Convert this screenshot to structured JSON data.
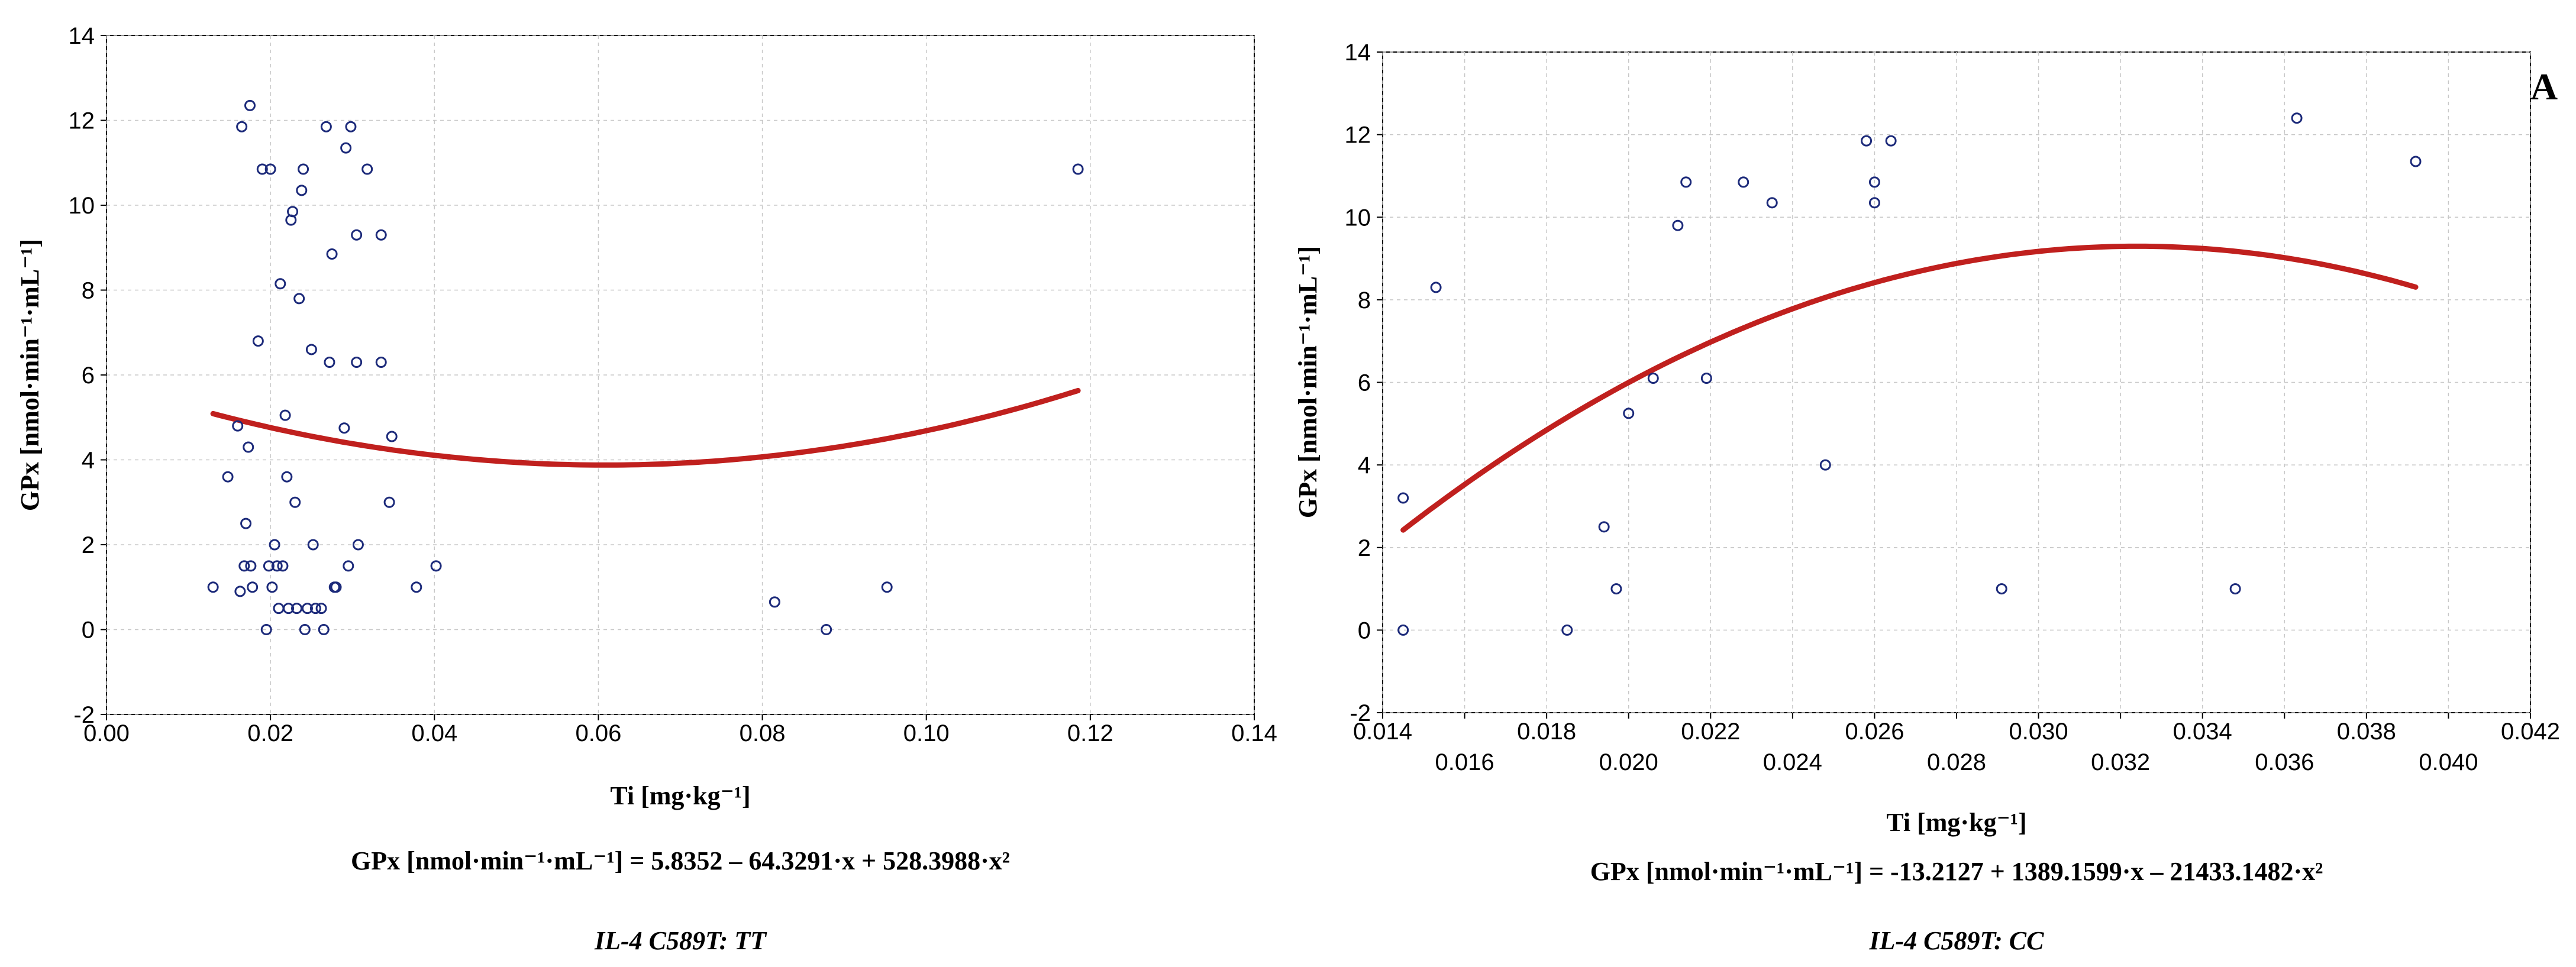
{
  "panel_letter": "A",
  "chart_data": [
    {
      "type": "scatter",
      "title": "",
      "xlabel": "Ti [mg·kg⁻¹]",
      "ylabel": "GPx [nmol·min⁻¹·mL⁻¹]",
      "xlim": [
        0.0,
        0.14
      ],
      "ylim": [
        -2,
        14
      ],
      "x_ticks": [
        0.0,
        0.02,
        0.04,
        0.06,
        0.08,
        0.1,
        0.12,
        0.14
      ],
      "x_tick_labels": [
        "0.00",
        "0.02",
        "0.04",
        "0.06",
        "0.08",
        "0.10",
        "0.12",
        "0.14"
      ],
      "y_ticks": [
        -2,
        0,
        2,
        4,
        6,
        8,
        10,
        12,
        14
      ],
      "y_tick_labels": [
        "-2",
        "0",
        "2",
        "4",
        "6",
        "8",
        "10",
        "12",
        "14"
      ],
      "grid": true,
      "equation": "GPx [nmol·min⁻¹·mL⁻¹] = 5.8352 – 64.3291·x + 528.3988·x²",
      "caption": "IL-4 C589T: TT",
      "fit": {
        "type": "quadratic",
        "a": 5.8352,
        "b": -64.3291,
        "c": 528.3988,
        "x_from": 0.013,
        "x_to": 0.1185
      },
      "points": [
        {
          "x": 0.013,
          "y": 1.0
        },
        {
          "x": 0.0148,
          "y": 3.6
        },
        {
          "x": 0.016,
          "y": 4.8
        },
        {
          "x": 0.0163,
          "y": 0.9
        },
        {
          "x": 0.0165,
          "y": 11.85
        },
        {
          "x": 0.0168,
          "y": 1.5
        },
        {
          "x": 0.017,
          "y": 2.5
        },
        {
          "x": 0.0173,
          "y": 4.3
        },
        {
          "x": 0.0175,
          "y": 12.35
        },
        {
          "x": 0.0176,
          "y": 1.5
        },
        {
          "x": 0.0178,
          "y": 1.0
        },
        {
          "x": 0.0185,
          "y": 6.8
        },
        {
          "x": 0.019,
          "y": 10.85
        },
        {
          "x": 0.0195,
          "y": 0.0
        },
        {
          "x": 0.0198,
          "y": 1.5
        },
        {
          "x": 0.02,
          "y": 10.85
        },
        {
          "x": 0.0202,
          "y": 1.0
        },
        {
          "x": 0.0205,
          "y": 2.0
        },
        {
          "x": 0.0208,
          "y": 1.5
        },
        {
          "x": 0.021,
          "y": 0.5
        },
        {
          "x": 0.0212,
          "y": 8.15
        },
        {
          "x": 0.0215,
          "y": 1.5
        },
        {
          "x": 0.0218,
          "y": 5.05
        },
        {
          "x": 0.022,
          "y": 3.6
        },
        {
          "x": 0.0222,
          "y": 0.5
        },
        {
          "x": 0.0225,
          "y": 9.65
        },
        {
          "x": 0.0227,
          "y": 9.85
        },
        {
          "x": 0.023,
          "y": 3.0
        },
        {
          "x": 0.0232,
          "y": 0.5
        },
        {
          "x": 0.0235,
          "y": 7.8
        },
        {
          "x": 0.0238,
          "y": 10.35
        },
        {
          "x": 0.024,
          "y": 10.85
        },
        {
          "x": 0.0242,
          "y": 0.0
        },
        {
          "x": 0.0245,
          "y": 0.5
        },
        {
          "x": 0.025,
          "y": 6.6
        },
        {
          "x": 0.0252,
          "y": 2.0
        },
        {
          "x": 0.0255,
          "y": 0.5
        },
        {
          "x": 0.0262,
          "y": 0.5
        },
        {
          "x": 0.0265,
          "y": 0.0
        },
        {
          "x": 0.0268,
          "y": 11.85
        },
        {
          "x": 0.0272,
          "y": 6.3
        },
        {
          "x": 0.0275,
          "y": 8.85
        },
        {
          "x": 0.0278,
          "y": 1.0
        },
        {
          "x": 0.028,
          "y": 1.0
        },
        {
          "x": 0.029,
          "y": 4.75
        },
        {
          "x": 0.0292,
          "y": 11.35
        },
        {
          "x": 0.0295,
          "y": 1.5
        },
        {
          "x": 0.0298,
          "y": 11.85
        },
        {
          "x": 0.0305,
          "y": 9.3
        },
        {
          "x": 0.0305,
          "y": 6.3
        },
        {
          "x": 0.0307,
          "y": 2.0
        },
        {
          "x": 0.0318,
          "y": 10.85
        },
        {
          "x": 0.0335,
          "y": 9.3
        },
        {
          "x": 0.0335,
          "y": 6.3
        },
        {
          "x": 0.0345,
          "y": 3.0
        },
        {
          "x": 0.0348,
          "y": 4.55
        },
        {
          "x": 0.0378,
          "y": 1.0
        },
        {
          "x": 0.0402,
          "y": 1.5
        },
        {
          "x": 0.0815,
          "y": 0.65
        },
        {
          "x": 0.0878,
          "y": 0.0
        },
        {
          "x": 0.0952,
          "y": 1.0
        },
        {
          "x": 0.1185,
          "y": 10.85
        }
      ]
    },
    {
      "type": "scatter",
      "title": "",
      "xlabel": "Ti [mg·kg⁻¹]",
      "ylabel": "GPx [nmol·min⁻¹·mL⁻¹]",
      "xlim": [
        0.014,
        0.042
      ],
      "ylim": [
        -2,
        14
      ],
      "x_ticks": [
        0.014,
        0.016,
        0.018,
        0.02,
        0.022,
        0.024,
        0.026,
        0.028,
        0.03,
        0.032,
        0.034,
        0.036,
        0.038,
        0.04,
        0.042
      ],
      "x_tick_labels": [
        "0.014",
        "0.016",
        "0.018",
        "0.020",
        "0.022",
        "0.024",
        "0.026",
        "0.028",
        "0.030",
        "0.032",
        "0.034",
        "0.036",
        "0.038",
        "0.040",
        "0.042"
      ],
      "y_ticks": [
        -2,
        0,
        2,
        4,
        6,
        8,
        10,
        12,
        14
      ],
      "y_tick_labels": [
        "-2",
        "0",
        "2",
        "4",
        "6",
        "8",
        "10",
        "12",
        "14"
      ],
      "grid": true,
      "equation": "GPx [nmol·min⁻¹·mL⁻¹] = -13.2127 + 1389.1599·x – 21433.1482·x²",
      "caption": "IL-4 C589T: CC",
      "fit": {
        "type": "quadratic",
        "a": -13.2127,
        "b": 1389.1599,
        "c": -21433.1482,
        "x_from": 0.0145,
        "x_to": 0.0392
      },
      "points": [
        {
          "x": 0.0145,
          "y": 3.2
        },
        {
          "x": 0.0145,
          "y": 0.0
        },
        {
          "x": 0.0153,
          "y": 8.3
        },
        {
          "x": 0.0185,
          "y": 0.0
        },
        {
          "x": 0.0194,
          "y": 2.5
        },
        {
          "x": 0.0197,
          "y": 1.0
        },
        {
          "x": 0.02,
          "y": 5.25
        },
        {
          "x": 0.0206,
          "y": 6.1
        },
        {
          "x": 0.0212,
          "y": 9.8
        },
        {
          "x": 0.0214,
          "y": 10.85
        },
        {
          "x": 0.0219,
          "y": 6.1
        },
        {
          "x": 0.0228,
          "y": 10.85
        },
        {
          "x": 0.0235,
          "y": 10.35
        },
        {
          "x": 0.0248,
          "y": 4.0
        },
        {
          "x": 0.0258,
          "y": 11.85
        },
        {
          "x": 0.026,
          "y": 10.85
        },
        {
          "x": 0.026,
          "y": 10.35
        },
        {
          "x": 0.0264,
          "y": 11.85
        },
        {
          "x": 0.0291,
          "y": 1.0
        },
        {
          "x": 0.0348,
          "y": 1.0
        },
        {
          "x": 0.0363,
          "y": 12.4
        },
        {
          "x": 0.0392,
          "y": 11.35
        }
      ]
    }
  ]
}
